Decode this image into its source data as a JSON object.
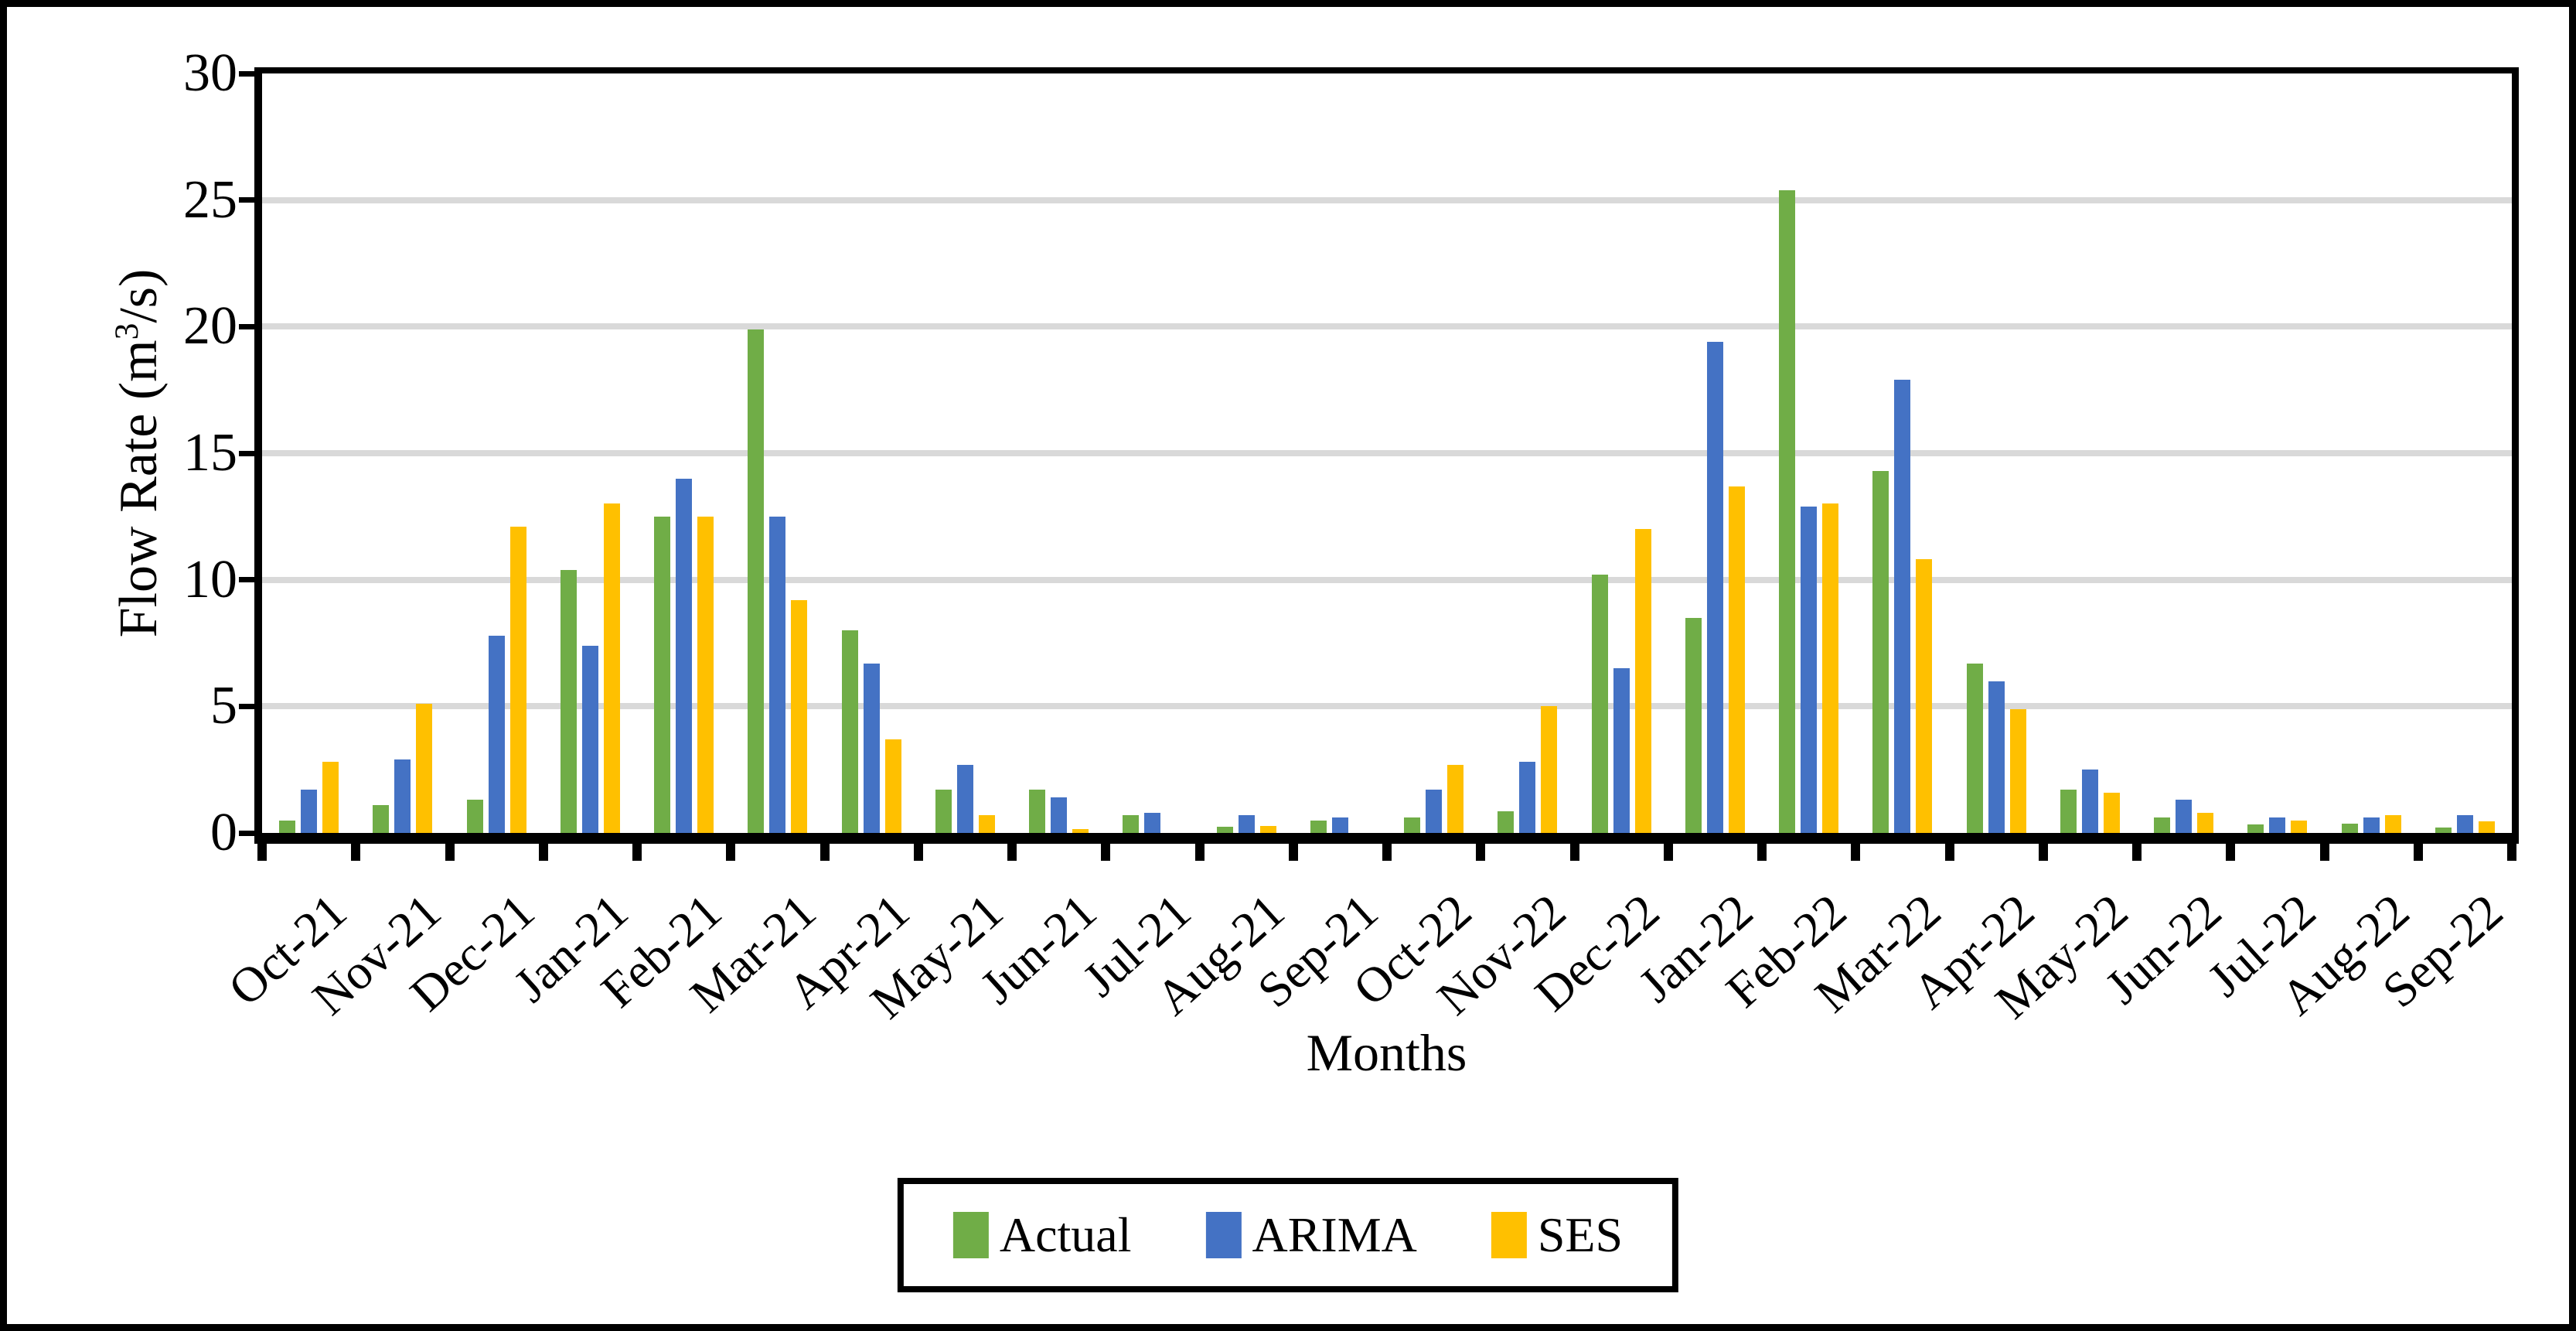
{
  "colors": {
    "grid": "#D9D9D9",
    "axis": "#000000",
    "background": "#FFFFFF"
  },
  "chart_data": {
    "type": "bar",
    "title": "",
    "xlabel": "Months",
    "ylabel": {
      "prefix": "Flow Rate (m",
      "sup": "3",
      "suffix": "/s)"
    },
    "ylabel_full": "Flow Rate (m3/s)",
    "ylim": [
      0,
      30
    ],
    "yticks": [
      0,
      5,
      10,
      15,
      20,
      25,
      30
    ],
    "grid": "horizontal gridlines every 5 units, light gray",
    "legend_position": "bottom-center, boxed",
    "categories": [
      "Oct-21",
      "Nov-21",
      "Dec-21",
      "Jan-21",
      "Feb-21",
      "Mar-21",
      "Apr-21",
      "May-21",
      "Jun-21",
      "Jul-21",
      "Aug-21",
      "Sep-21",
      "Oct-22",
      "Nov-22",
      "Dec-22",
      "Jan-22",
      "Feb-22",
      "Mar-22",
      "Apr-22",
      "May-22",
      "Jun-22",
      "Jul-22",
      "Aug-22",
      "Sep-22"
    ],
    "series": [
      {
        "name": "Actual",
        "color": "#70AD47",
        "values": [
          0.5,
          1.1,
          1.3,
          10.4,
          12.5,
          19.9,
          8.0,
          1.7,
          1.7,
          0.7,
          0.25,
          0.5,
          0.6,
          0.85,
          10.2,
          8.5,
          25.4,
          14.3,
          6.7,
          1.7,
          0.6,
          0.35,
          0.36,
          0.22
        ]
      },
      {
        "name": "ARIMA",
        "color": "#4472C4",
        "values": [
          1.7,
          2.9,
          7.8,
          7.4,
          14.0,
          12.5,
          6.7,
          2.7,
          1.4,
          0.8,
          0.7,
          0.6,
          1.7,
          2.8,
          6.5,
          19.4,
          12.9,
          17.9,
          6.0,
          2.5,
          1.3,
          0.6,
          0.6,
          0.7
        ]
      },
      {
        "name": "SES",
        "color": "#FFC000",
        "values": [
          2.8,
          5.1,
          12.1,
          13.0,
          12.5,
          9.2,
          3.7,
          0.7,
          0.15,
          0,
          0.27,
          0,
          2.7,
          5.0,
          12.0,
          13.7,
          13.0,
          10.8,
          4.9,
          1.6,
          0.8,
          0.5,
          0.7,
          0.45
        ]
      }
    ]
  }
}
